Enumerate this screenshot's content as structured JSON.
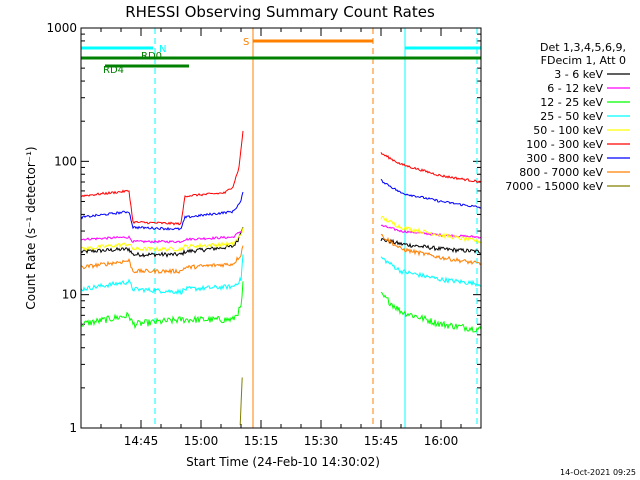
{
  "chart_data": {
    "type": "line",
    "title": "RHESSI Observing Summary Count Rates",
    "xlabel": "Start Time (24-Feb-10 14:30:02)",
    "ylabel": "Count Rate (s⁻¹ detector⁻¹)",
    "yscale": "log",
    "ylim": [
      1,
      1000
    ],
    "xlim_minutes": [
      0,
      100
    ],
    "y_ticks": [
      "1",
      "10",
      "100",
      "1000"
    ],
    "x_ticks": [
      {
        "label": "14:45",
        "t": 15
      },
      {
        "label": "15:00",
        "t": 30
      },
      {
        "label": "15:15",
        "t": 45
      },
      {
        "label": "15:30",
        "t": 60
      },
      {
        "label": "15:45",
        "t": 75
      },
      {
        "label": "16:00",
        "t": 90
      }
    ],
    "legend_header": [
      "Det 1,3,4,5,6,9,",
      "FDecim 1, Att 0"
    ],
    "timestamp": "14-Oct-2021 09:25",
    "series": [
      {
        "name": "3 - 6 keV",
        "color": "#000000",
        "noise": 0.035,
        "segments": [
          {
            "pts": [
              [
                0,
                21
              ],
              [
                12,
                22
              ],
              [
                13,
                20
              ],
              [
                25,
                20
              ],
              [
                26,
                21
              ],
              [
                38,
                23
              ],
              [
                39.3,
                26
              ],
              [
                40,
                30
              ],
              [
                40.5,
                33
              ]
            ]
          },
          {
            "pts": [
              [
                75,
                26
              ],
              [
                80,
                24
              ],
              [
                90,
                22
              ],
              [
                100,
                21
              ]
            ]
          }
        ]
      },
      {
        "name": "6 - 12 keV",
        "color": "#ff00ff",
        "noise": 0.02,
        "segments": [
          {
            "pts": [
              [
                0,
                26
              ],
              [
                12,
                27
              ],
              [
                13,
                25
              ],
              [
                25,
                25
              ],
              [
                26,
                26
              ],
              [
                38,
                27
              ],
              [
                40,
                30
              ],
              [
                40.5,
                31
              ]
            ]
          },
          {
            "pts": [
              [
                75,
                33
              ],
              [
                80,
                30
              ],
              [
                90,
                28
              ],
              [
                100,
                27
              ]
            ]
          }
        ]
      },
      {
        "name": "12 - 25 keV",
        "color": "#00ff00",
        "noise": 0.06,
        "segments": [
          {
            "pts": [
              [
                0,
                6
              ],
              [
                12,
                7
              ],
              [
                13,
                6
              ],
              [
                25,
                6.5
              ],
              [
                26,
                6.5
              ],
              [
                38,
                6.5
              ],
              [
                40,
                8
              ],
              [
                40.5,
                12
              ]
            ]
          },
          {
            "pts": [
              [
                75,
                10
              ],
              [
                80,
                7.5
              ],
              [
                90,
                6
              ],
              [
                100,
                5.5
              ]
            ]
          }
        ]
      },
      {
        "name": "25 - 50 keV",
        "color": "#00ffff",
        "noise": 0.04,
        "segments": [
          {
            "pts": [
              [
                0,
                11
              ],
              [
                12,
                12.5
              ],
              [
                13,
                11
              ],
              [
                25,
                10.5
              ],
              [
                26,
                11
              ],
              [
                38,
                11.5
              ],
              [
                40,
                13
              ],
              [
                40.5,
                20
              ]
            ]
          },
          {
            "pts": [
              [
                75,
                19
              ],
              [
                80,
                15
              ],
              [
                90,
                13
              ],
              [
                100,
                12
              ]
            ]
          }
        ]
      },
      {
        "name": "50 - 100 keV",
        "color": "#ffff00",
        "noise": 0.035,
        "segments": [
          {
            "pts": [
              [
                0,
                22
              ],
              [
                12,
                24
              ],
              [
                13,
                22
              ],
              [
                25,
                22
              ],
              [
                26,
                23
              ],
              [
                38,
                24
              ],
              [
                40,
                28
              ],
              [
                40.5,
                32
              ]
            ]
          },
          {
            "pts": [
              [
                75,
                38
              ],
              [
                80,
                32
              ],
              [
                90,
                28
              ],
              [
                100,
                25
              ]
            ]
          }
        ]
      },
      {
        "name": "100 - 300 keV",
        "color": "#ff0000",
        "noise": 0.02,
        "segments": [
          {
            "pts": [
              [
                0,
                55
              ],
              [
                12,
                60
              ],
              [
                13,
                35
              ],
              [
                25,
                34
              ],
              [
                26,
                55
              ],
              [
                36,
                58
              ],
              [
                38,
                65
              ],
              [
                39.5,
                90
              ],
              [
                40.5,
                170
              ]
            ]
          },
          {
            "pts": [
              [
                75,
                115
              ],
              [
                80,
                95
              ],
              [
                90,
                78
              ],
              [
                100,
                70
              ]
            ]
          }
        ]
      },
      {
        "name": "300 - 800 keV",
        "color": "#0000ff",
        "noise": 0.02,
        "segments": [
          {
            "pts": [
              [
                0,
                38
              ],
              [
                12,
                42
              ],
              [
                13,
                32
              ],
              [
                25,
                31
              ],
              [
                26,
                38
              ],
              [
                38,
                42
              ],
              [
                40,
                50
              ],
              [
                40.5,
                60
              ]
            ]
          },
          {
            "pts": [
              [
                75,
                72
              ],
              [
                80,
                58
              ],
              [
                90,
                50
              ],
              [
                100,
                45
              ]
            ]
          }
        ]
      },
      {
        "name": "800 - 7000 keV",
        "color": "#ff8000",
        "noise": 0.035,
        "segments": [
          {
            "pts": [
              [
                0,
                16
              ],
              [
                12,
                18
              ],
              [
                13,
                15
              ],
              [
                25,
                15
              ],
              [
                26,
                16
              ],
              [
                38,
                17
              ],
              [
                40,
                20
              ],
              [
                40.5,
                24
              ]
            ]
          },
          {
            "pts": [
              [
                75,
                28
              ],
              [
                80,
                22
              ],
              [
                90,
                19
              ],
              [
                100,
                17
              ]
            ]
          }
        ]
      },
      {
        "name": "7000 - 15000 keV",
        "color": "#808000",
        "noise": 0.05,
        "segments": [
          {
            "pts": [
              [
                39.8,
                1.1
              ],
              [
                40.2,
                2
              ],
              [
                40.5,
                3
              ]
            ]
          }
        ]
      }
    ],
    "flag_bars": [
      {
        "label": "N",
        "color": "#00ffff",
        "intervals": [
          [
            0,
            18
          ],
          [
            81,
            100
          ]
        ],
        "level": "N"
      },
      {
        "label": "RD0",
        "color": "#008000",
        "intervals": [
          [
            0,
            100
          ]
        ],
        "level": "RD0"
      },
      {
        "label": "RD4",
        "color": "#008000",
        "intervals": [
          [
            6,
            27
          ]
        ],
        "level": "RD4"
      },
      {
        "label": "S",
        "color": "#ff8000",
        "intervals": [
          [
            43,
            73
          ]
        ],
        "level": "S"
      }
    ],
    "vertical_markers": [
      {
        "t": 18.5,
        "color": "#00ffff",
        "style": "dashed"
      },
      {
        "t": 81,
        "color": "#00ffff",
        "style": "solid"
      },
      {
        "t": 99,
        "color": "#00ffff",
        "style": "dashed"
      },
      {
        "t": 43,
        "color": "#ff8000",
        "style": "solid"
      },
      {
        "t": 73,
        "color": "#ff8000",
        "style": "dashed"
      }
    ]
  }
}
